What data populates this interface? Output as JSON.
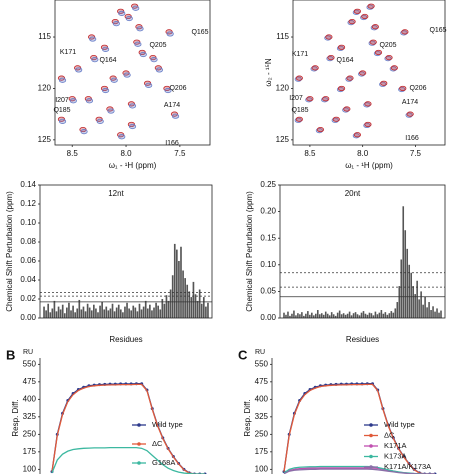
{
  "chart_data": [
    {
      "type": "scatter",
      "xlabel": "ω₁ - ¹H (ppm)",
      "xlim": [
        8.66,
        7.22
      ],
      "ylim": [
        125.5,
        111.4
      ],
      "xticks": [
        8.5,
        {
          "value": 8.0,
          "label": "8.0"
        },
        7.5
      ],
      "yticks": [
        115,
        120,
        125
      ],
      "series": [
        {
          "color": "#c0282d",
          "x": [
            8.05,
            7.98,
            7.92,
            7.88,
            8.1,
            8.2,
            8.3,
            8.45,
            8.6,
            8.35,
            8.15,
            7.95,
            7.8,
            7.7,
            7.62,
            7.55,
            8.25,
            8.4,
            8.0,
            7.85,
            8.5,
            8.12,
            7.9,
            7.75,
            8.32,
            8.6,
            7.6,
            8.05,
            7.95,
            8.2
          ],
          "y": [
            112.5,
            113,
            112,
            114,
            113.5,
            116,
            117,
            118,
            119,
            121,
            122,
            121.5,
            119.5,
            118,
            120,
            122.5,
            123,
            124,
            118.5,
            116.5,
            121,
            119,
            115.5,
            117,
            115,
            123,
            114.5,
            124.5,
            123.5,
            120
          ]
        },
        {
          "color": "#6a7fc8",
          "x": [
            8.04,
            7.97,
            7.91,
            7.87,
            8.09,
            8.19,
            8.29,
            8.44,
            8.59,
            8.34,
            8.14,
            7.94,
            7.79,
            7.69,
            7.61,
            7.54,
            8.24,
            8.39,
            7.99,
            7.84,
            8.49,
            8.11,
            7.89,
            7.74,
            8.31,
            8.59,
            7.59,
            8.04,
            7.94,
            8.19
          ],
          "y": [
            112.7,
            113.2,
            112.2,
            114.2,
            113.7,
            116.2,
            117.2,
            118.2,
            119.2,
            121.2,
            122.2,
            121.7,
            119.7,
            118.2,
            120.2,
            122.7,
            123.2,
            124.2,
            118.7,
            116.7,
            121.2,
            119.2,
            115.7,
            117.2,
            115.2,
            123.2,
            114.7,
            124.7,
            123.7,
            120.2
          ]
        }
      ],
      "annotations": [
        "Q165",
        "Q205",
        "K171",
        "Q164",
        "Q206",
        "A174",
        "I207",
        "Q185",
        "I166"
      ]
    },
    {
      "type": "scatter",
      "xlabel": "ω₁ - ¹H (ppm)",
      "ylabel": "ω₂ - ¹⁵N",
      "xlim": [
        8.66,
        7.22
      ],
      "ylim": [
        125.5,
        111.4
      ],
      "xticks": [
        8.5,
        {
          "value": 8.0,
          "label": "8.0"
        },
        7.5
      ],
      "yticks": [
        115,
        120,
        125
      ],
      "series": [
        {
          "color": "#6a7fc8",
          "x": [
            8.06,
            7.99,
            7.93,
            7.89,
            8.11,
            8.21,
            8.31,
            8.46,
            8.61,
            8.36,
            8.16,
            7.96,
            7.81,
            7.71,
            7.63,
            7.56,
            8.26,
            8.41,
            8.01,
            7.86,
            8.51,
            8.13,
            7.91,
            7.76,
            8.33,
            8.61,
            7.61,
            8.06,
            7.96,
            8.21
          ],
          "y": [
            112.6,
            113.1,
            112.1,
            114.1,
            113.6,
            116.1,
            117.1,
            118.1,
            119.1,
            121.1,
            122.1,
            121.6,
            119.6,
            118.1,
            120.1,
            122.6,
            123.1,
            124.1,
            118.6,
            116.6,
            121.1,
            119.1,
            115.6,
            117.1,
            115.1,
            123.1,
            114.6,
            124.6,
            123.6,
            120.1
          ]
        },
        {
          "color": "#c0282d",
          "x": [
            8.05,
            7.98,
            7.92,
            7.88,
            8.1,
            8.2,
            8.3,
            8.45,
            8.6,
            8.35,
            8.15,
            7.95,
            7.8,
            7.7,
            7.62,
            7.55,
            8.25,
            8.4,
            8.0,
            7.85,
            8.5,
            8.12,
            7.9,
            7.75,
            8.32,
            8.6,
            7.6,
            8.05,
            7.95,
            8.2
          ],
          "y": [
            112.5,
            113,
            112,
            114,
            113.5,
            116,
            117,
            118,
            119,
            121,
            122,
            121.5,
            119.5,
            118,
            120,
            122.5,
            123,
            124,
            118.5,
            116.5,
            121,
            119,
            115.5,
            117,
            115,
            123,
            114.5,
            124.5,
            123.5,
            120
          ]
        }
      ],
      "annotations": [
        "Q165",
        "Q205",
        "K171",
        "Q164",
        "I207",
        "Q206",
        "A174",
        "Q185",
        "I166"
      ]
    },
    {
      "type": "bar",
      "title": "12nt",
      "xlabel": "Residues",
      "ylabel": "Chemical Shift Perturbation (ppm)",
      "color": "#555555",
      "ylim": [
        0,
        0.14
      ],
      "yticks": [
        {
          "value": 0,
          "label": "0.00"
        },
        0.02,
        0.04,
        0.06,
        0.08,
        {
          "value": 0.1,
          "label": "0.10"
        },
        0.12,
        0.14
      ],
      "ref_lines": [
        {
          "value": 0.027,
          "style": "dashed"
        },
        {
          "value": 0.023,
          "style": "dashed"
        },
        {
          "value": 0.017,
          "style": "solid"
        }
      ],
      "values": [
        0.012,
        0.008,
        0.015,
        0.006,
        0.01,
        0.018,
        0.007,
        0.012,
        0.009,
        0.014,
        0.005,
        0.011,
        0.016,
        0.008,
        0.013,
        0.006,
        0.01,
        0.019,
        0.009,
        0.012,
        0.007,
        0.015,
        0.011,
        0.008,
        0.014,
        0.01,
        0.006,
        0.013,
        0.017,
        0.009,
        0.012,
        0.008,
        0.01,
        0.015,
        0.007,
        0.011,
        0.014,
        0.009,
        0.006,
        0.012,
        0.016,
        0.01,
        0.008,
        0.013,
        0.011,
        0.007,
        0.015,
        0.009,
        0.012,
        0.018,
        0.01,
        0.014,
        0.008,
        0.011,
        0.016,
        0.013,
        0.009,
        0.02,
        0.015,
        0.024,
        0.018,
        0.03,
        0.045,
        0.078,
        0.072,
        0.06,
        0.075,
        0.05,
        0.042,
        0.035,
        0.028,
        0.022,
        0.038,
        0.025,
        0.018,
        0.03,
        0.015,
        0.022,
        0.012,
        0.016
      ]
    },
    {
      "type": "bar",
      "title": "20nt",
      "xlabel": "Residues",
      "ylabel": "Chemical Shift Perturbation (ppm)",
      "color": "#555555",
      "ylim": [
        0,
        0.25
      ],
      "yticks": [
        {
          "value": 0,
          "label": "0.00"
        },
        0.05,
        {
          "value": 0.1,
          "label": "0.10"
        },
        0.15,
        {
          "value": 0.2,
          "label": "0.20"
        },
        0.25
      ],
      "ref_lines": [
        {
          "value": 0.085,
          "style": "dashed"
        },
        {
          "value": 0.058,
          "style": "dashed"
        },
        {
          "value": 0.04,
          "style": "solid"
        }
      ],
      "values": [
        0.01,
        0.006,
        0.012,
        0.004,
        0.008,
        0.014,
        0.005,
        0.009,
        0.007,
        0.011,
        0.004,
        0.008,
        0.013,
        0.006,
        0.01,
        0.005,
        0.008,
        0.015,
        0.007,
        0.009,
        0.006,
        0.012,
        0.008,
        0.005,
        0.011,
        0.007,
        0.004,
        0.01,
        0.014,
        0.007,
        0.009,
        0.006,
        0.008,
        0.012,
        0.005,
        0.009,
        0.011,
        0.007,
        0.005,
        0.01,
        0.013,
        0.008,
        0.006,
        0.01,
        0.009,
        0.005,
        0.012,
        0.007,
        0.01,
        0.015,
        0.008,
        0.011,
        0.006,
        0.009,
        0.013,
        0.01,
        0.018,
        0.03,
        0.06,
        0.11,
        0.21,
        0.165,
        0.13,
        0.1,
        0.085,
        0.06,
        0.045,
        0.07,
        0.035,
        0.05,
        0.025,
        0.04,
        0.02,
        0.03,
        0.015,
        0.022,
        0.012,
        0.018,
        0.01,
        0.014
      ]
    },
    {
      "type": "line",
      "panel": "B",
      "unit": "RU",
      "ylabel": "Resp. Diff.",
      "ylim": [
        80,
        560
      ],
      "yticks": [
        100,
        175,
        250,
        325,
        400,
        475,
        550
      ],
      "series": [
        {
          "name": "Wild type",
          "color": "#2d3a8c",
          "markers": true,
          "values": [
            90,
            250,
            340,
            395,
            425,
            442,
            452,
            458,
            461,
            463,
            464,
            465,
            465,
            466,
            466,
            466,
            467,
            467,
            440,
            360,
            290,
            235,
            190,
            155,
            125,
            100,
            85,
            80,
            80,
            80
          ]
        },
        {
          "name": "ΔC",
          "color": "#e05a3a",
          "markers": false,
          "values": [
            90,
            245,
            335,
            390,
            420,
            438,
            448,
            455,
            458,
            460,
            461,
            462,
            462,
            463,
            463,
            463,
            464,
            464,
            437,
            357,
            287,
            232,
            188,
            153,
            123,
            98,
            84,
            80,
            80,
            80
          ]
        },
        {
          "name": "G168A",
          "color": "#3cb8a0",
          "markers": false,
          "values": [
            85,
            140,
            165,
            178,
            185,
            188,
            190,
            191,
            192,
            192,
            192,
            193,
            193,
            193,
            193,
            193,
            193,
            190,
            180,
            160,
            140,
            120,
            105,
            95,
            88,
            84,
            82,
            80,
            80,
            80
          ]
        }
      ]
    },
    {
      "type": "line",
      "panel": "C",
      "unit": "RU",
      "ylabel": "Resp. Diff.",
      "ylim": [
        80,
        560
      ],
      "yticks": [
        100,
        175,
        250,
        325,
        400,
        475,
        550
      ],
      "series": [
        {
          "name": "Wild type",
          "color": "#2d3a8c",
          "markers": true,
          "values": [
            90,
            250,
            340,
            395,
            425,
            442,
            452,
            458,
            461,
            463,
            464,
            465,
            465,
            466,
            466,
            466,
            467,
            467,
            440,
            360,
            290,
            235,
            190,
            155,
            125,
            100,
            85,
            80,
            80,
            80
          ]
        },
        {
          "name": "ΔC",
          "color": "#e05a3a",
          "markers": false,
          "values": [
            90,
            245,
            335,
            390,
            420,
            438,
            448,
            455,
            458,
            460,
            461,
            462,
            462,
            463,
            463,
            463,
            464,
            464,
            437,
            357,
            287,
            232,
            188,
            153,
            123,
            98,
            84,
            80,
            80,
            80
          ]
        },
        {
          "name": "K171A",
          "color": "#c04fb0",
          "markers": false,
          "values": [
            82,
            95,
            100,
            103,
            104,
            105,
            105,
            106,
            106,
            106,
            106,
            106,
            106,
            106,
            106,
            106,
            106,
            106,
            104,
            100,
            96,
            92,
            88,
            85,
            83,
            82,
            81,
            80,
            80,
            80
          ]
        },
        {
          "name": "K173A",
          "color": "#3cb8a0",
          "markers": false,
          "values": [
            84,
            100,
            106,
            109,
            110,
            111,
            111,
            112,
            112,
            112,
            112,
            112,
            112,
            112,
            112,
            112,
            112,
            111,
            108,
            103,
            98,
            93,
            89,
            86,
            84,
            82,
            81,
            80,
            80,
            80
          ]
        },
        {
          "name": "K171A/K173A",
          "color": "#8a6fa8",
          "markers": false,
          "values": [
            81,
            92,
            96,
            98,
            99,
            100,
            100,
            101,
            101,
            101,
            101,
            101,
            101,
            101,
            101,
            101,
            101,
            100,
            98,
            95,
            92,
            89,
            86,
            84,
            82,
            81,
            80,
            80,
            80,
            80
          ]
        }
      ]
    }
  ]
}
